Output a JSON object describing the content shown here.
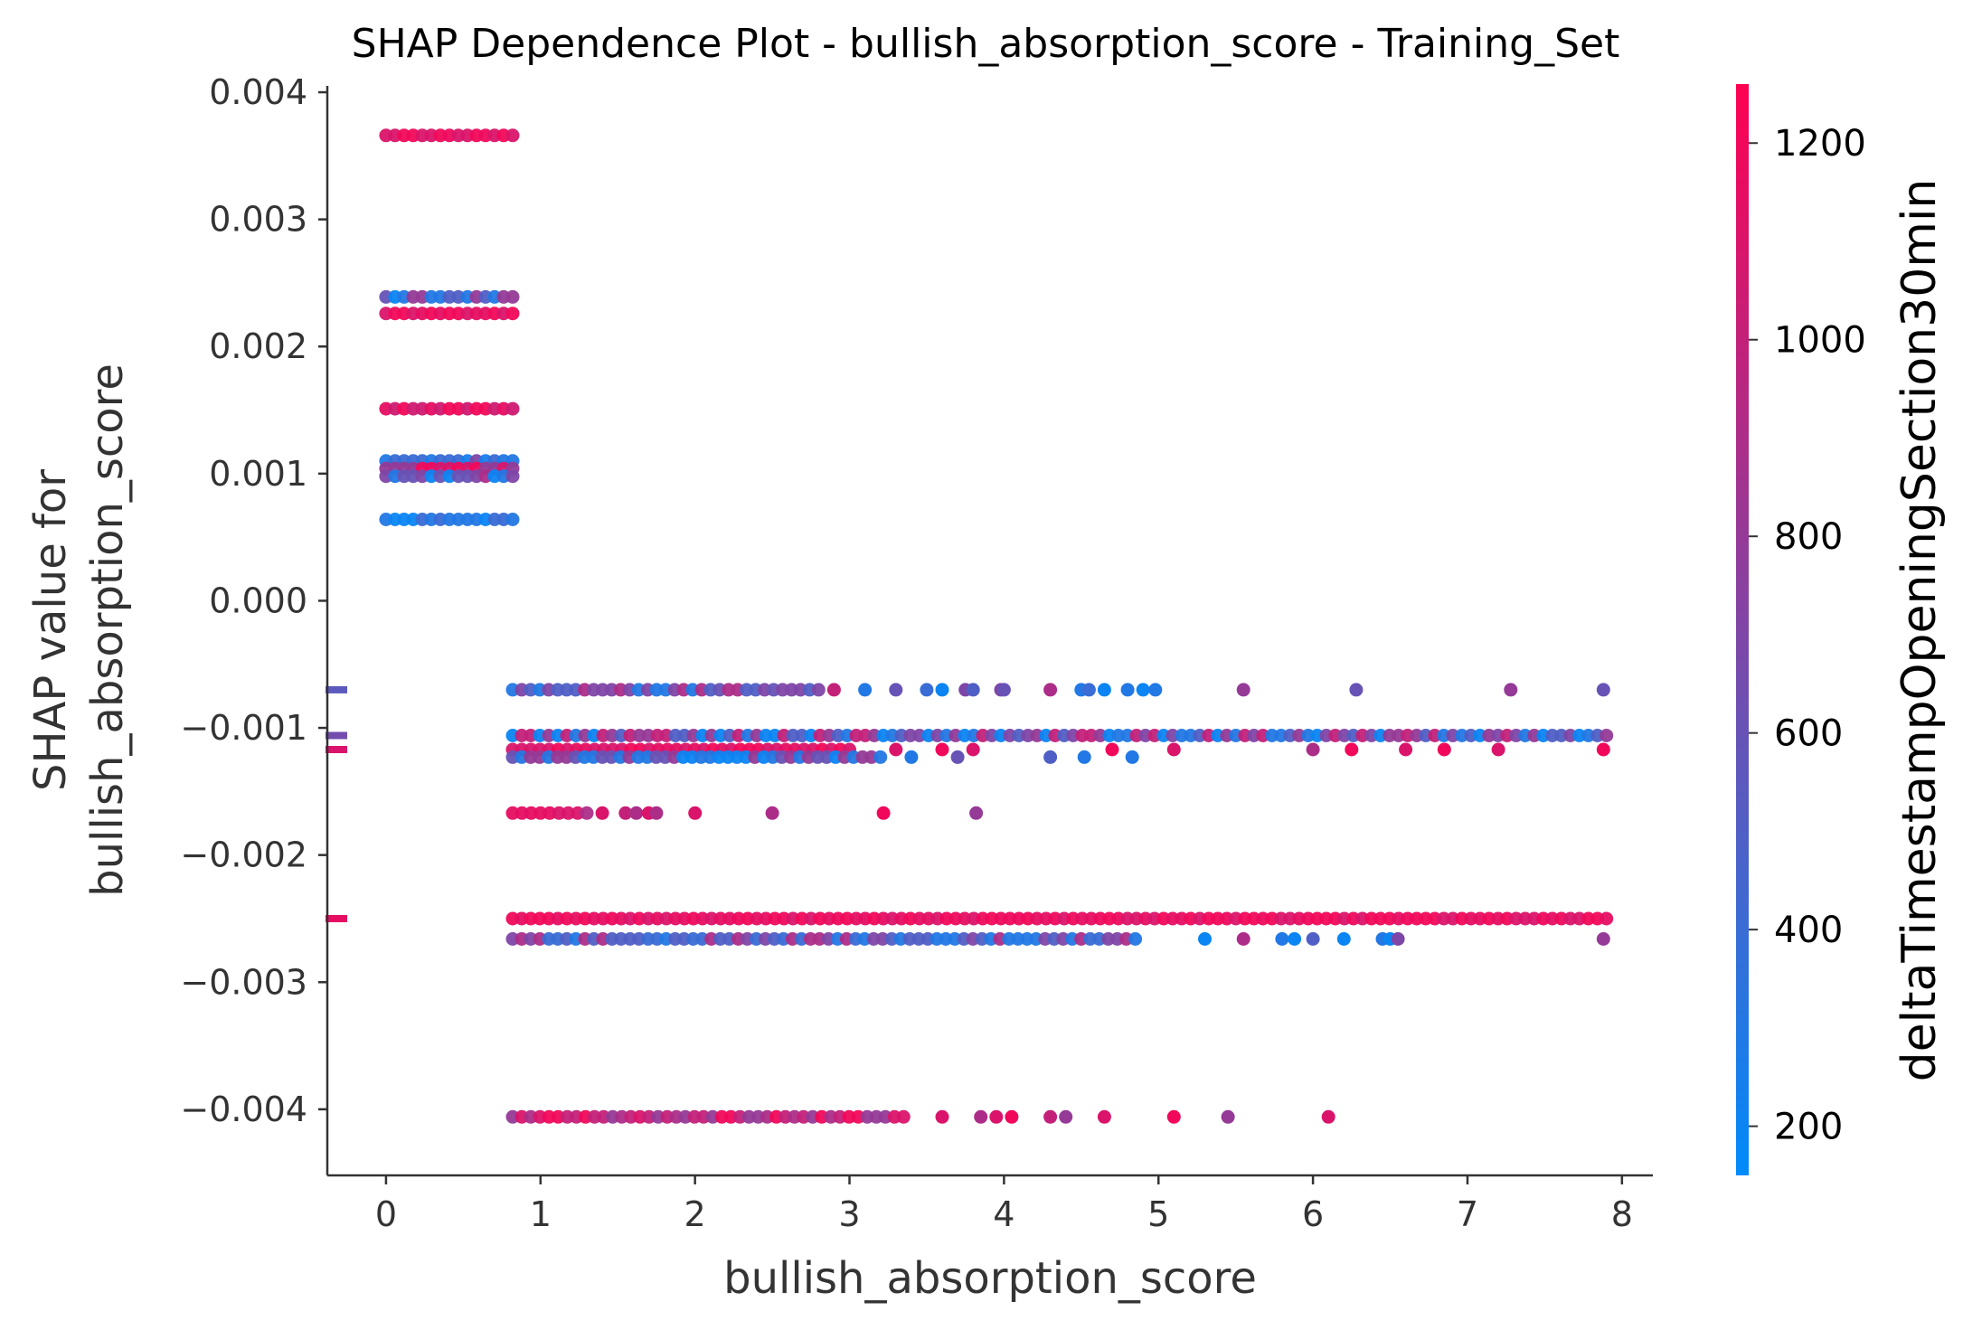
{
  "chart_data": {
    "type": "scatter",
    "title": "SHAP Dependence Plot - bullish_absorption_score - Training_Set",
    "xlabel": "bullish_absorption_score",
    "ylabel_lines": [
      "SHAP value for",
      "bullish_absorption_score"
    ],
    "xlim": [
      -0.38,
      8.2
    ],
    "ylim": [
      -0.00452,
      0.00405
    ],
    "x_ticks": [
      {
        "value": 0,
        "label": "0"
      },
      {
        "value": 1,
        "label": "1"
      },
      {
        "value": 2,
        "label": "2"
      },
      {
        "value": 3,
        "label": "3"
      },
      {
        "value": 4,
        "label": "4"
      },
      {
        "value": 5,
        "label": "5"
      },
      {
        "value": 6,
        "label": "6"
      },
      {
        "value": 7,
        "label": "7"
      },
      {
        "value": 8,
        "label": "8"
      }
    ],
    "y_ticks": [
      {
        "value": 0.004,
        "label": "0.004"
      },
      {
        "value": 0.003,
        "label": "0.003"
      },
      {
        "value": 0.002,
        "label": "0.002"
      },
      {
        "value": 0.001,
        "label": "0.001"
      },
      {
        "value": 0.0,
        "label": "0.000"
      },
      {
        "value": -0.001,
        "label": "−0.001"
      },
      {
        "value": -0.002,
        "label": "−0.002"
      },
      {
        "value": -0.003,
        "label": "−0.003"
      },
      {
        "value": -0.004,
        "label": "−0.004"
      }
    ],
    "colorbar": {
      "label": "deltaTimestampOpeningSection30min",
      "range": [
        150,
        1260
      ],
      "ticks": [
        {
          "value": 200,
          "label": "200"
        },
        {
          "value": 400,
          "label": "400"
        },
        {
          "value": 600,
          "label": "600"
        },
        {
          "value": 800,
          "label": "800"
        },
        {
          "value": 1000,
          "label": "1000"
        },
        {
          "value": 1200,
          "label": "1200"
        }
      ],
      "colors": [
        "#008bfb",
        "#ff0051"
      ]
    },
    "grid": false,
    "missing_value_markers": [
      {
        "y": -0.0007,
        "color_value": 550
      },
      {
        "y": -0.00106,
        "color_value": 650
      },
      {
        "y": -0.00117,
        "color_value": 1100
      },
      {
        "y": -0.0025,
        "color_value": 1150
      }
    ],
    "bands": [
      {
        "y": 0.00366,
        "x_range": [
          0,
          0.82
        ],
        "color_values": [
          1200,
          1100,
          1180
        ]
      },
      {
        "y": 0.00239,
        "x_range": [
          0,
          0.82
        ],
        "color_values": [
          300,
          600,
          800,
          200,
          500
        ]
      },
      {
        "y": 0.00226,
        "x_range": [
          0,
          0.82
        ],
        "color_values": [
          1200,
          1150,
          1100
        ]
      },
      {
        "y": 0.00151,
        "x_range": [
          0,
          0.82
        ],
        "color_values": [
          1200,
          1050,
          1150
        ]
      },
      {
        "y": 0.0011,
        "x_range": [
          0,
          0.82
        ],
        "color_values": [
          250,
          400,
          700,
          300
        ]
      },
      {
        "y": 0.00104,
        "x_range": [
          0,
          0.82
        ],
        "color_values": [
          1100,
          1200,
          800
        ]
      },
      {
        "y": 0.00098,
        "x_range": [
          0,
          0.82
        ],
        "color_values": [
          700,
          300,
          600,
          900,
          200
        ]
      },
      {
        "y": 0.00064,
        "x_range": [
          0,
          0.82
        ],
        "color_values": [
          300,
          500,
          200,
          400
        ]
      },
      {
        "y": -0.0007,
        "x_range": [
          0.82,
          2.8
        ],
        "color_values": [
          700,
          500,
          300,
          900,
          600
        ],
        "points": [
          [
            2.9,
            1000
          ],
          [
            3.1,
            300
          ],
          [
            3.3,
            600
          ],
          [
            3.5,
            400
          ],
          [
            3.6,
            200
          ],
          [
            3.75,
            700
          ],
          [
            3.8,
            500
          ],
          [
            3.98,
            700
          ],
          [
            4.0,
            600
          ],
          [
            4.3,
            900
          ],
          [
            4.5,
            300
          ],
          [
            4.55,
            400
          ],
          [
            4.65,
            200
          ],
          [
            4.8,
            300
          ],
          [
            4.9,
            200
          ],
          [
            4.98,
            300
          ],
          [
            5.55,
            800
          ],
          [
            6.28,
            600
          ],
          [
            7.28,
            800
          ],
          [
            7.88,
            600
          ]
        ]
      },
      {
        "y": -0.00106,
        "x_range": [
          0.82,
          7.9
        ],
        "color_values": [
          300,
          700,
          1000,
          200,
          500,
          800
        ]
      },
      {
        "y": -0.00117,
        "x_range": [
          0.82,
          3.0
        ],
        "color_values": [
          1200,
          1100,
          1150
        ],
        "points": [
          [
            3.3,
            1100
          ],
          [
            3.6,
            1200
          ],
          [
            3.8,
            1100
          ],
          [
            4.7,
            1200
          ],
          [
            5.1,
            1100
          ],
          [
            6.0,
            900
          ],
          [
            6.25,
            1200
          ],
          [
            6.6,
            1100
          ],
          [
            6.85,
            1200
          ],
          [
            7.2,
            1100
          ],
          [
            7.88,
            1200
          ]
        ]
      },
      {
        "y": -0.00123,
        "x_range": [
          0.82,
          3.2
        ],
        "color_values": [
          300,
          600,
          800,
          200
        ],
        "points": [
          [
            3.4,
            300
          ],
          [
            3.7,
            600
          ],
          [
            4.3,
            500
          ],
          [
            4.52,
            300
          ],
          [
            4.83,
            300
          ]
        ]
      },
      {
        "y": -0.00167,
        "x_range": [
          0.82,
          1.3
        ],
        "color_values": [
          1150,
          1100,
          900
        ],
        "points": [
          [
            1.4,
            1100
          ],
          [
            1.55,
            1000
          ],
          [
            1.62,
            900
          ],
          [
            1.7,
            1100
          ],
          [
            1.75,
            900
          ],
          [
            2.0,
            1100
          ],
          [
            2.5,
            900
          ],
          [
            3.22,
            1200
          ],
          [
            3.82,
            800
          ]
        ]
      },
      {
        "y": -0.0025,
        "x_range": [
          0.82,
          7.9
        ],
        "color_values": [
          1200,
          1150,
          1100,
          1180
        ]
      },
      {
        "y": -0.00266,
        "x_range": [
          0.82,
          4.85
        ],
        "color_values": [
          300,
          500,
          700,
          900,
          400
        ],
        "points": [
          [
            5.3,
            200
          ],
          [
            5.55,
            900
          ],
          [
            5.8,
            300
          ],
          [
            5.88,
            200
          ],
          [
            6.0,
            500
          ],
          [
            6.2,
            200
          ],
          [
            6.45,
            300
          ],
          [
            6.5,
            200
          ],
          [
            6.55,
            700
          ],
          [
            7.88,
            800
          ]
        ]
      },
      {
        "y": -0.00406,
        "x_range": [
          0.82,
          3.35
        ],
        "color_values": [
          1200,
          900,
          1100,
          1000,
          800
        ],
        "points": [
          [
            3.6,
            1100
          ],
          [
            3.85,
            900
          ],
          [
            3.95,
            1100
          ],
          [
            4.05,
            1200
          ],
          [
            4.3,
            1000
          ],
          [
            4.4,
            800
          ],
          [
            4.65,
            1100
          ],
          [
            5.1,
            1200
          ],
          [
            5.45,
            800
          ],
          [
            6.1,
            1100
          ]
        ]
      }
    ]
  }
}
